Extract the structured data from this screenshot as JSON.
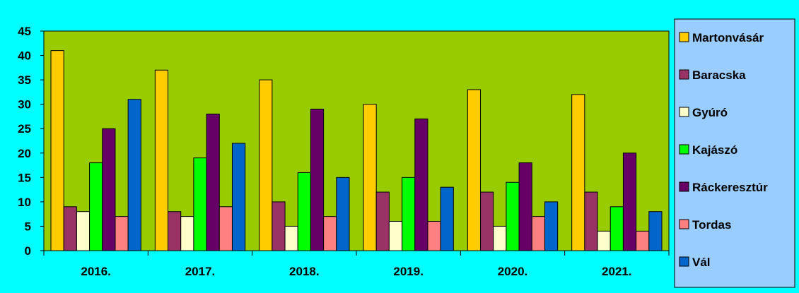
{
  "chart_data": {
    "type": "bar",
    "title": "",
    "xlabel": "",
    "ylabel": "",
    "categories": [
      "2016.",
      "2017.",
      "2018.",
      "2019.",
      "2020.",
      "2021."
    ],
    "ylim": [
      0,
      45
    ],
    "yticks": [
      0,
      5,
      10,
      15,
      20,
      25,
      30,
      35,
      40,
      45
    ],
    "grid": false,
    "legend_position": "right",
    "colors": {
      "background": "#00ffff",
      "plot_area": "#99cc00",
      "legend_box": "#99ccff"
    },
    "series": [
      {
        "name": "Martonvásár",
        "color": "#ffcc00",
        "values": [
          41,
          37,
          35,
          30,
          33,
          32
        ]
      },
      {
        "name": "Baracska",
        "color": "#993366",
        "values": [
          9,
          8,
          10,
          12,
          12,
          12
        ]
      },
      {
        "name": "Gyúró",
        "color": "#ffffcc",
        "values": [
          8,
          7,
          5,
          6,
          5,
          4
        ]
      },
      {
        "name": "Kajászó",
        "color": "#00ff00",
        "values": [
          18,
          19,
          16,
          15,
          14,
          9
        ]
      },
      {
        "name": "Ráckeresztúr",
        "color": "#660066",
        "values": [
          25,
          28,
          29,
          27,
          18,
          20
        ]
      },
      {
        "name": "Tordas",
        "color": "#ff8080",
        "values": [
          7,
          9,
          7,
          6,
          7,
          4
        ]
      },
      {
        "name": "Vál",
        "color": "#0066cc",
        "values": [
          31,
          22,
          15,
          13,
          10,
          8
        ]
      }
    ]
  }
}
